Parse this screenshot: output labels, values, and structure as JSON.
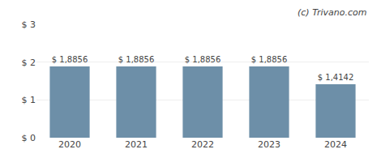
{
  "chart_data": {
    "type": "bar",
    "categories": [
      "2020",
      "2021",
      "2022",
      "2023",
      "2024"
    ],
    "values": [
      1.8856,
      1.8856,
      1.8856,
      1.8856,
      1.4142
    ],
    "value_labels": [
      "$ 1,8856",
      "$ 1,8856",
      "$ 1,8856",
      "$ 1,8856",
      "$ 1,4142"
    ],
    "data_labels": true,
    "color": "#6d8fa8",
    "ylim": [
      0,
      3
    ],
    "yticks": [
      {
        "value": 0,
        "label": "$ 0"
      },
      {
        "value": 1,
        "label": "$ 1"
      },
      {
        "value": 2,
        "label": "$ 2"
      },
      {
        "value": 3,
        "label": "$ 3"
      }
    ],
    "grid": true,
    "annotations": [
      "(c) Trivano.com"
    ]
  }
}
